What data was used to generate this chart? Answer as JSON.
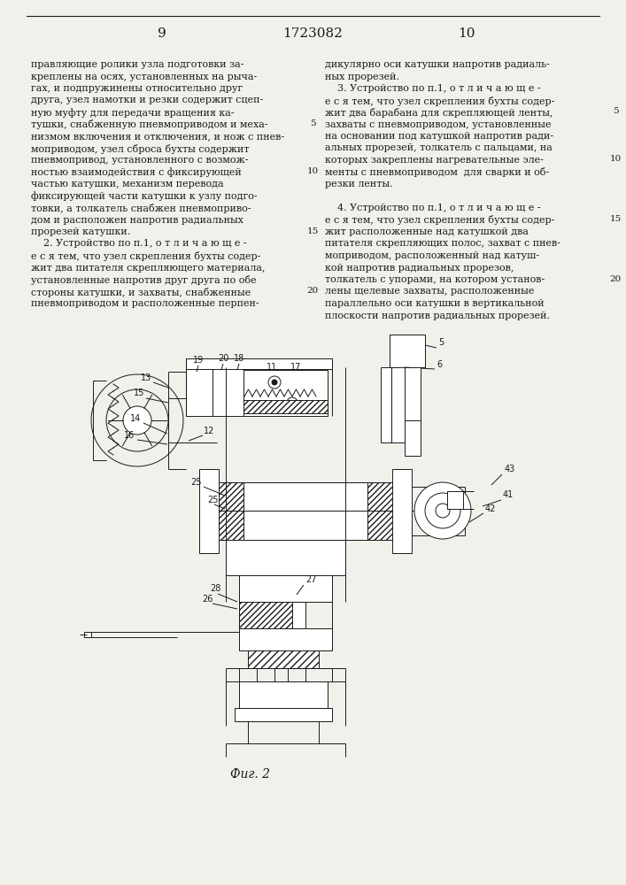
{
  "page_left": "9",
  "page_center": "1723082",
  "page_right": "10",
  "bg_color": "#f2f0eb",
  "text_color": "#1a1a1a",
  "fig_caption": "Фиг. 2",
  "left_col": [
    "правляющие ролики узла подготовки за-",
    "креплены на осях, установленных на рыча-",
    "гах, и подпружинены относительно друг",
    "друга, узел намотки и резки содержит сцеп-",
    "ную муфту для передачи вращения ка-",
    "тушки, снабженную пневмоприводом и меха-",
    "низмом включения и отключения, и нож с пнев-",
    "моприводом, узел сброса бухты содержит",
    "пневмопривод, установленного с возмож-",
    "ностью взаимодействия с фиксирующей",
    "частью катушки, механизм перевода",
    "фиксирующей части катушки к узлу подго-",
    "товки, а толкатель снабжен пневмоприво-",
    "дом и расположен напротив радиальных",
    "прорезей катушки.",
    "    2. Устройство по п.1, о т л и ч а ю щ е -",
    "е с я тем, что узел скрепления бухты содер-",
    "жит два питателя скрепляющего материала,",
    "установленные напротив друг друга по обе",
    "стороны катушки, и захваты, снабженные",
    "пневмоприводом и расположенные перпен-"
  ],
  "right_col": [
    "дикулярно оси катушки напротив радиаль-",
    "ных прорезей.",
    "    3. Устройство по п.1, о т л и ч а ю щ е -",
    "е с я тем, что узел скрепления бухты содер-",
    "жит два барабана для скрепляющей ленты,",
    "захваты с пневмоприводом, установленные",
    "на основании под катушкой напротив ради-",
    "альных прорезей, толкатель с пальцами, на",
    "которых закреплены нагревательные эле-",
    "менты с пневмоприводом  для сварки и об-",
    "резки ленты.",
    "",
    "    4. Устройство по п.1, о т л и ч а ю щ е -",
    "е с я тем, что узел скрепления бухты содер-",
    "жит расположенные над катушкой два",
    "питателя скрепляющих полос, захват с пнев-",
    "моприводом, расположенный над катуш-",
    "кой напротив радиальных прорезов,",
    "толкатель с упорами, на котором установ-",
    "лены щелевые захваты, расположенные",
    "параллельно оси катушки в вертикальной",
    "плоскости напротив радиальных прорезей."
  ],
  "line_numbers_left": [
    "5",
    "10",
    "15",
    "20"
  ],
  "line_numbers_right": [
    "5",
    "10",
    "15",
    "20"
  ]
}
